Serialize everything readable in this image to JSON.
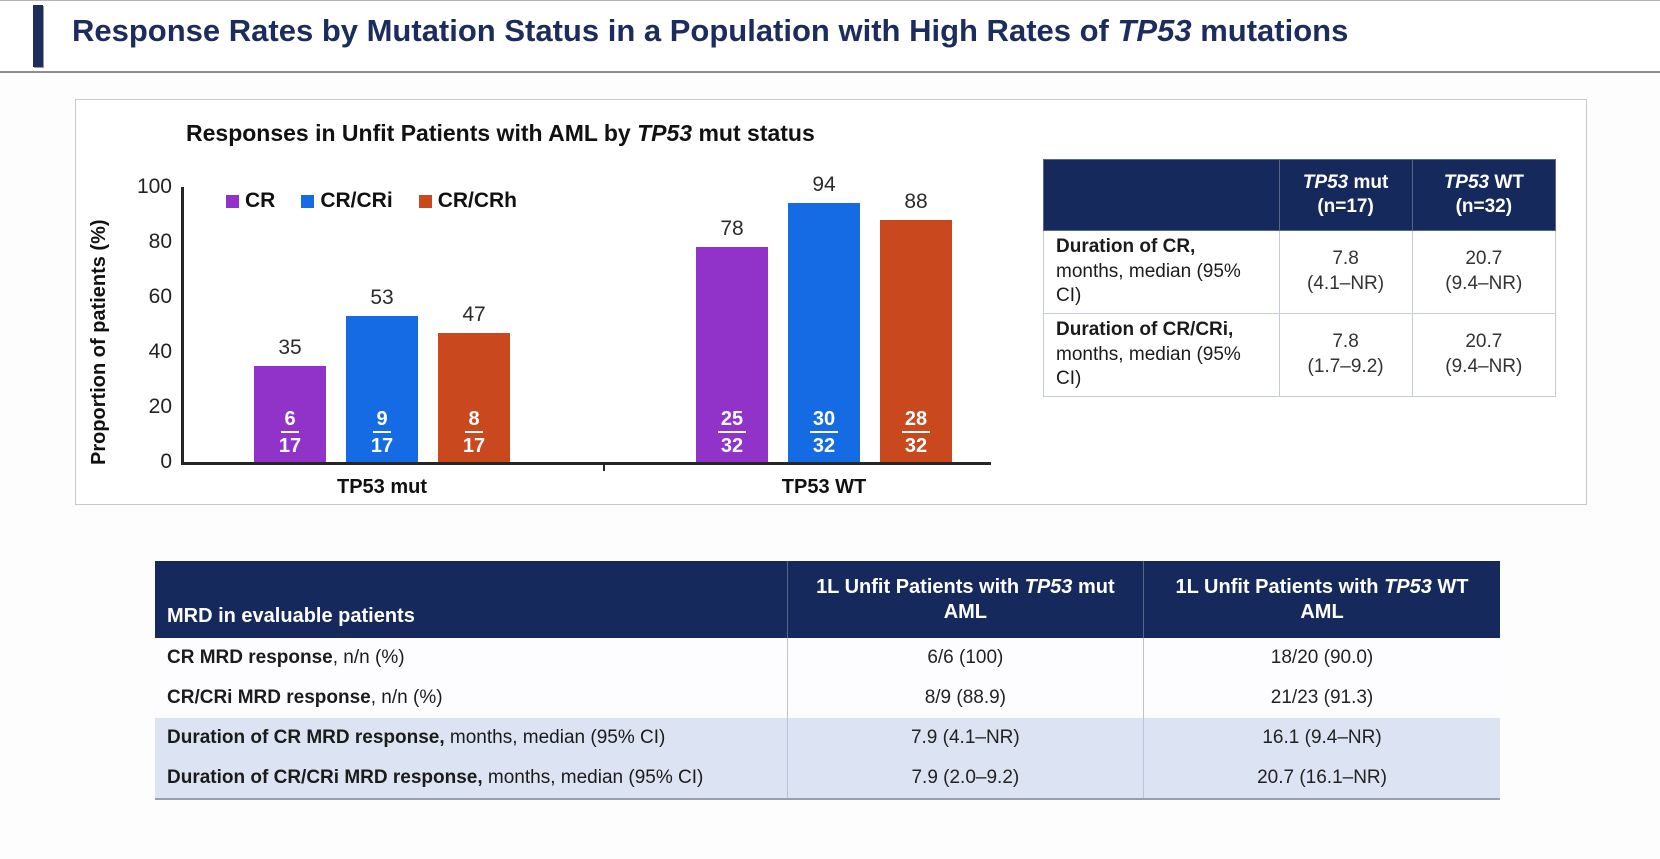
{
  "page_title": {
    "pre": "Response Rates by Mutation Status in a Population with High Rates of ",
    "italic": "TP53",
    "post": " mutations"
  },
  "chart": {
    "title_pre": "Responses in Unfit Patients with AML by ",
    "title_italic": "TP53",
    "title_post": " mut status",
    "y_axis_label": "Proportion of patients (%)"
  },
  "chart_data": {
    "type": "bar",
    "title": "Responses in Unfit Patients with AML by TP53 mut status",
    "ylabel": "Proportion of patients (%)",
    "ylim": [
      0,
      100
    ],
    "yticks": [
      0,
      20,
      40,
      60,
      80,
      100
    ],
    "grid": false,
    "legend_position": "top-left",
    "categories": [
      "TP53 mut",
      "TP53 WT"
    ],
    "series": [
      {
        "name": "CR",
        "color": "#9133c9",
        "values": [
          35,
          78
        ],
        "fractions": [
          "6/17",
          "25/32"
        ]
      },
      {
        "name": "CR/CRi",
        "color": "#146be4",
        "values": [
          53,
          94
        ],
        "fractions": [
          "9/17",
          "30/32"
        ]
      },
      {
        "name": "CR/CRh",
        "color": "#c9481d",
        "values": [
          47,
          88
        ],
        "fractions": [
          "8/17",
          "28/32"
        ]
      }
    ]
  },
  "duration_table": {
    "col2": {
      "italic": "TP53",
      "rest": " mut",
      "line2": "(n=17)"
    },
    "col3": {
      "italic": "TP53",
      "rest": " WT",
      "line2": "(n=32)"
    },
    "rows": [
      {
        "label_bold": "Duration of CR,",
        "label_rest": "months, median (95% CI)",
        "mut_1": "7.8",
        "mut_2": "(4.1–NR)",
        "wt_1": "20.7",
        "wt_2": "(9.4–NR)"
      },
      {
        "label_bold": "Duration of CR/CRi,",
        "label_rest": "months, median (95% CI)",
        "mut_1": "7.8",
        "mut_2": "(1.7–9.2)",
        "wt_1": "20.7",
        "wt_2": "(9.4–NR)"
      }
    ]
  },
  "mrd_table": {
    "header_col1": "MRD in evaluable patients",
    "col2": {
      "line1_pre": "1L Unfit Patients with ",
      "italic": "TP53",
      "line1_post": " mut",
      "line2": "AML"
    },
    "col3": {
      "line1_pre": "1L Unfit Patients with ",
      "italic": "TP53",
      "line1_post": " WT",
      "line2": "AML"
    },
    "rows": [
      {
        "bold": "CR MRD response",
        "rest": ", n/n (%)",
        "mut": "6/6 (100)",
        "wt": "18/20 (90.0)"
      },
      {
        "bold": "CR/CRi MRD response",
        "rest": ", n/n (%)",
        "mut": "8/9 (88.9)",
        "wt": "21/23 (91.3)"
      },
      {
        "bold": "Duration of CR MRD response,",
        "rest": " months, median (95% CI)",
        "mut": "7.9 (4.1–NR)",
        "wt": "16.1 (9.4–NR)"
      },
      {
        "bold": "Duration of CR/CRi MRD response,",
        "rest": " months, median (95% CI)",
        "mut": "7.9 (2.0–9.2)",
        "wt": "20.7 (16.1–NR)"
      }
    ]
  }
}
